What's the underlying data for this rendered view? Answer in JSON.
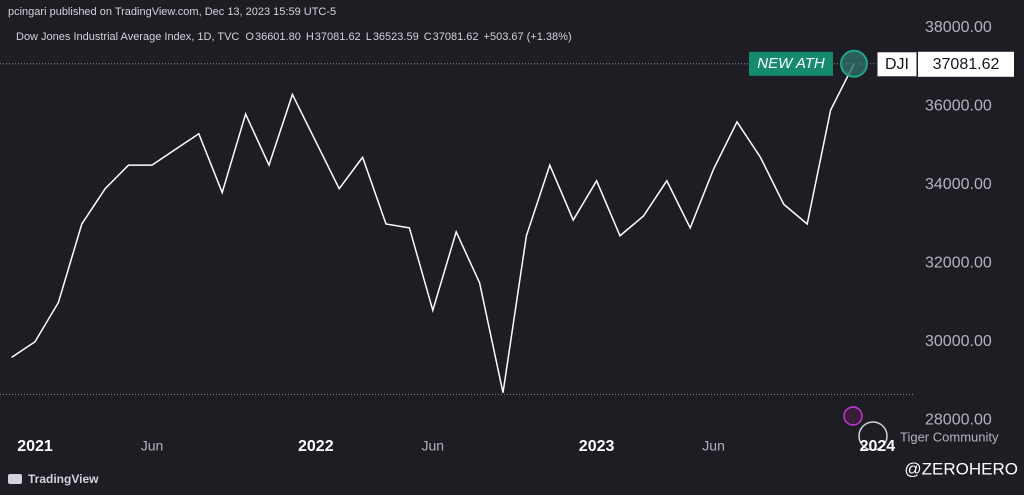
{
  "header": {
    "publisher": "pcingari published on TradingView.com, Dec 13, 2023 15:59 UTC-5"
  },
  "chart_data": {
    "type": "line",
    "title": "Dow Jones Industrial Average Index, 1D, TVC",
    "ohlc": [
      {
        "label": "O",
        "value": "36601.80"
      },
      {
        "label": "H",
        "value": "37081.62"
      },
      {
        "label": "L",
        "value": "36523.59"
      },
      {
        "label": "C",
        "value": "37081.62"
      }
    ],
    "change": "+503.67 (+1.38%)",
    "x": [
      "2020-12",
      "2021-01",
      "2021-02",
      "2021-03",
      "2021-04",
      "2021-05",
      "2021-06",
      "2021-07",
      "2021-08",
      "2021-09",
      "2021-10",
      "2021-11",
      "2021-12",
      "2022-01",
      "2022-02",
      "2022-03",
      "2022-04",
      "2022-05",
      "2022-06",
      "2022-07",
      "2022-08",
      "2022-09",
      "2022-10",
      "2022-11",
      "2022-12",
      "2023-01",
      "2023-02",
      "2023-03",
      "2023-04",
      "2023-05",
      "2023-06",
      "2023-07",
      "2023-08",
      "2023-09",
      "2023-10",
      "2023-11",
      "2023-12"
    ],
    "series": [
      {
        "name": "DJI",
        "color": "#ffffff",
        "values": [
          29600,
          30000,
          31000,
          33000,
          33900,
          34500,
          34500,
          34900,
          35300,
          33800,
          35800,
          34500,
          36300,
          35100,
          33900,
          34700,
          33000,
          32900,
          30800,
          32800,
          31500,
          28700,
          32700,
          34500,
          33100,
          34100,
          32700,
          33200,
          34100,
          32900,
          34400,
          35600,
          34700,
          33500,
          33000,
          35900,
          37081.62
        ]
      }
    ],
    "last_price": {
      "value": 37081.62,
      "label": "37081.62"
    },
    "annotation": "NEW ATH",
    "reference_lines": [
      28660
    ],
    "xlim": [
      "2020-12",
      "2024-02"
    ],
    "xticks": [
      {
        "value": "2021-01",
        "label": "2021"
      },
      {
        "value": "2021-06",
        "label": "Jun"
      },
      {
        "value": "2022-01",
        "label": "2022"
      },
      {
        "value": "2022-06",
        "label": "Jun"
      },
      {
        "value": "2023-01",
        "label": "2023"
      },
      {
        "value": "2023-06",
        "label": "Jun"
      },
      {
        "value": "2024-01",
        "label": "2024"
      }
    ],
    "ylim": [
      27700,
      38350
    ],
    "yticks": [
      {
        "value": 28000,
        "label": "28000.00"
      },
      {
        "value": 30000,
        "label": "30000.00"
      },
      {
        "value": 32000,
        "label": "32000.00"
      },
      {
        "value": 34000,
        "label": "34000.00"
      },
      {
        "value": 36000,
        "label": "36000.00"
      },
      {
        "value": 38000,
        "label": "38000.00"
      }
    ],
    "grid": false
  },
  "footer": {
    "brand": "TradingView",
    "community": "Tiger Community",
    "handle": "@ZEROHERO"
  }
}
